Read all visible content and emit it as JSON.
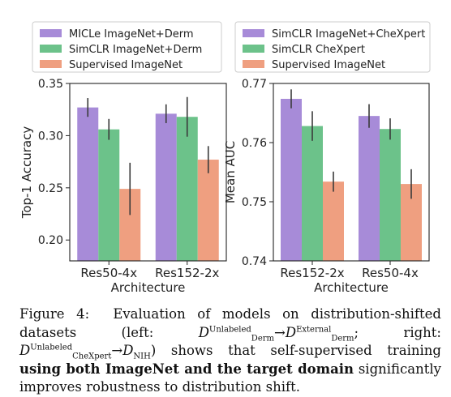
{
  "chart_data": [
    {
      "type": "bar",
      "categories": [
        "Res50-4x",
        "Res152-2x"
      ],
      "series": [
        {
          "name": "MICLe ImageNet+Derm",
          "color": "#a78bd8",
          "values": [
            0.327,
            0.321
          ],
          "err": [
            0.009,
            0.009
          ]
        },
        {
          "name": "SimCLR ImageNet+Derm",
          "color": "#6cc28a",
          "values": [
            0.306,
            0.318
          ],
          "err": [
            0.01,
            0.019
          ]
        },
        {
          "name": "Supervised ImageNet",
          "color": "#ef9f80",
          "values": [
            0.249,
            0.277
          ],
          "err": [
            0.025,
            0.013
          ]
        }
      ],
      "xlabel": "Architecture",
      "ylabel": "Top-1 Accuracy",
      "ylim": [
        0.18,
        0.35
      ],
      "yticks": [
        "0.20",
        "0.25",
        "0.30",
        "0.35"
      ],
      "ytick_values": [
        0.2,
        0.25,
        0.3,
        0.35
      ],
      "grid": false,
      "legend": "top"
    },
    {
      "type": "bar",
      "categories": [
        "Res152-2x",
        "Res50-4x"
      ],
      "series": [
        {
          "name": "SimCLR ImageNet+CheXpert",
          "color": "#a78bd8",
          "values": [
            0.7674,
            0.7645
          ],
          "err": [
            0.0016,
            0.002
          ]
        },
        {
          "name": "SimCLR CheXpert",
          "color": "#6cc28a",
          "values": [
            0.7628,
            0.7623
          ],
          "err": [
            0.0025,
            0.0018
          ]
        },
        {
          "name": "Supervised ImageNet",
          "color": "#ef9f80",
          "values": [
            0.7534,
            0.753
          ],
          "err": [
            0.0017,
            0.0025
          ]
        }
      ],
      "xlabel": "Architecture",
      "ylabel": "Mean AUC",
      "ylim": [
        0.74,
        0.77
      ],
      "yticks": [
        "0.77",
        "0.76",
        "0.75",
        "0.74"
      ],
      "ytick_values": [
        0.77,
        0.76,
        0.75,
        0.74
      ],
      "grid": false,
      "legend": "top"
    }
  ],
  "caption": {
    "label": "Figure 4:",
    "text1": "Evaluation of models on distribution-shifted datasets (left: ",
    "d": "D",
    "derm": "Derm",
    "unlabeled": "Unlabeled",
    "external": "External",
    "arrow": "→",
    "semi": "; right: ",
    "chexpert": "CheXpert",
    "nih": "NIH",
    "text2": ") shows that self-supervised training ",
    "bold": "using both ImageNet and the target domain",
    "text3": " significantly improves robustness to distribution shift."
  }
}
